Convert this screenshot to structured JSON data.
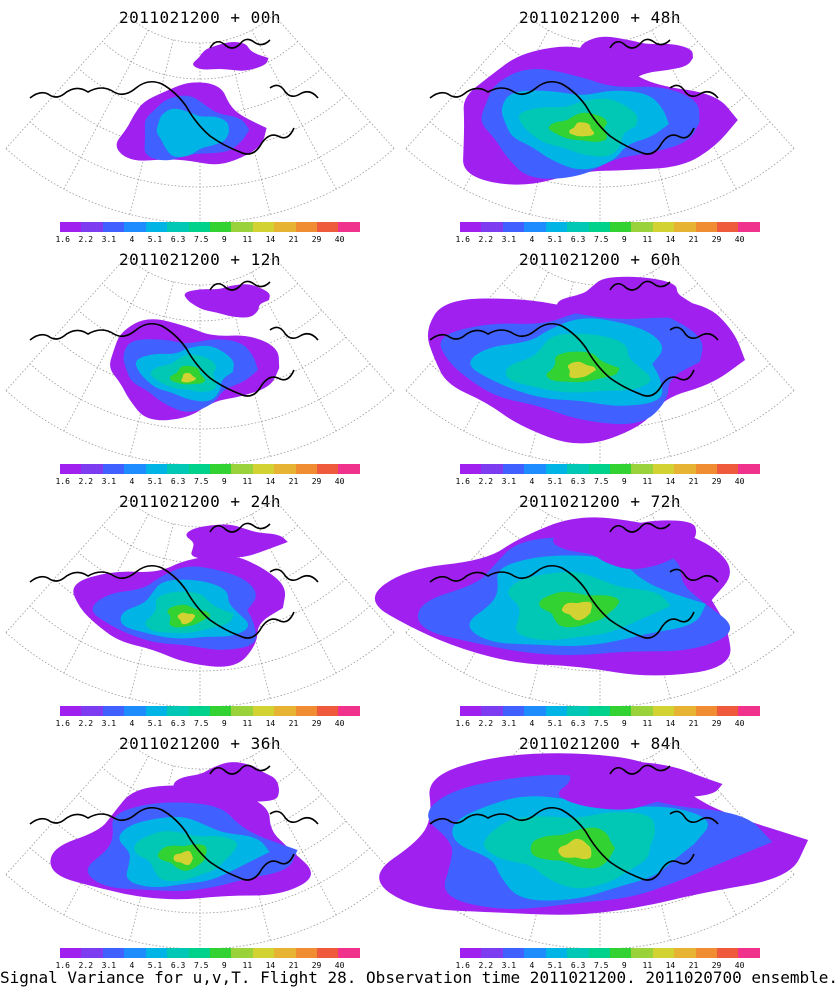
{
  "panels": [
    {
      "title": "2011021200 + 00h",
      "stage": 0
    },
    {
      "title": "2011021200 + 48h",
      "stage": 4
    },
    {
      "title": "2011021200 + 12h",
      "stage": 1
    },
    {
      "title": "2011021200 + 60h",
      "stage": 5
    },
    {
      "title": "2011021200 + 24h",
      "stage": 2
    },
    {
      "title": "2011021200 + 72h",
      "stage": 6
    },
    {
      "title": "2011021200 + 36h",
      "stage": 3
    },
    {
      "title": "2011021200 + 84h",
      "stage": 7
    }
  ],
  "colorbar": {
    "tick_labels": [
      "1.6",
      "2.2",
      "3.1",
      "4",
      "5.1",
      "6.3",
      "7.5",
      "9",
      "11",
      "14",
      "21",
      "29",
      "40"
    ],
    "colors": [
      "#a020f0",
      "#7e3cf0",
      "#4060ff",
      "#1e8cff",
      "#00b4e6",
      "#00c8b4",
      "#00d28c",
      "#32d232",
      "#9ad23c",
      "#d2d232",
      "#e6b432",
      "#f08c32",
      "#f05a3c",
      "#f0328c"
    ]
  },
  "caption": "Signal Variance for u,v,T. Flight 28. Observation time 2011021200. 2011020700 ensemble.",
  "map_style": {
    "grid": true,
    "background": "#ffffff",
    "coastline_color": "#000000"
  }
}
